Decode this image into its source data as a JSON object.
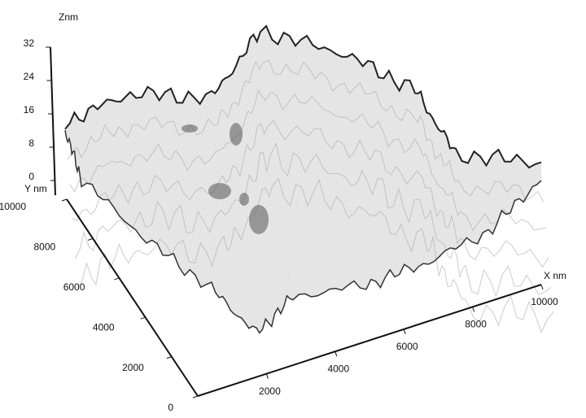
{
  "chart_data": {
    "type": "surface3d",
    "x_label": "X nm",
    "y_label": "Y nm",
    "z_label": "Znm",
    "xlim": [
      0,
      10000
    ],
    "xticks": [
      2000,
      4000,
      6000,
      8000,
      10000
    ],
    "ylim": [
      0,
      10000
    ],
    "yticks": [
      0,
      2000,
      4000,
      6000,
      8000,
      10000
    ],
    "zlim": [
      0,
      32
    ],
    "zticks": [
      0,
      8,
      16,
      24,
      32
    ]
  }
}
